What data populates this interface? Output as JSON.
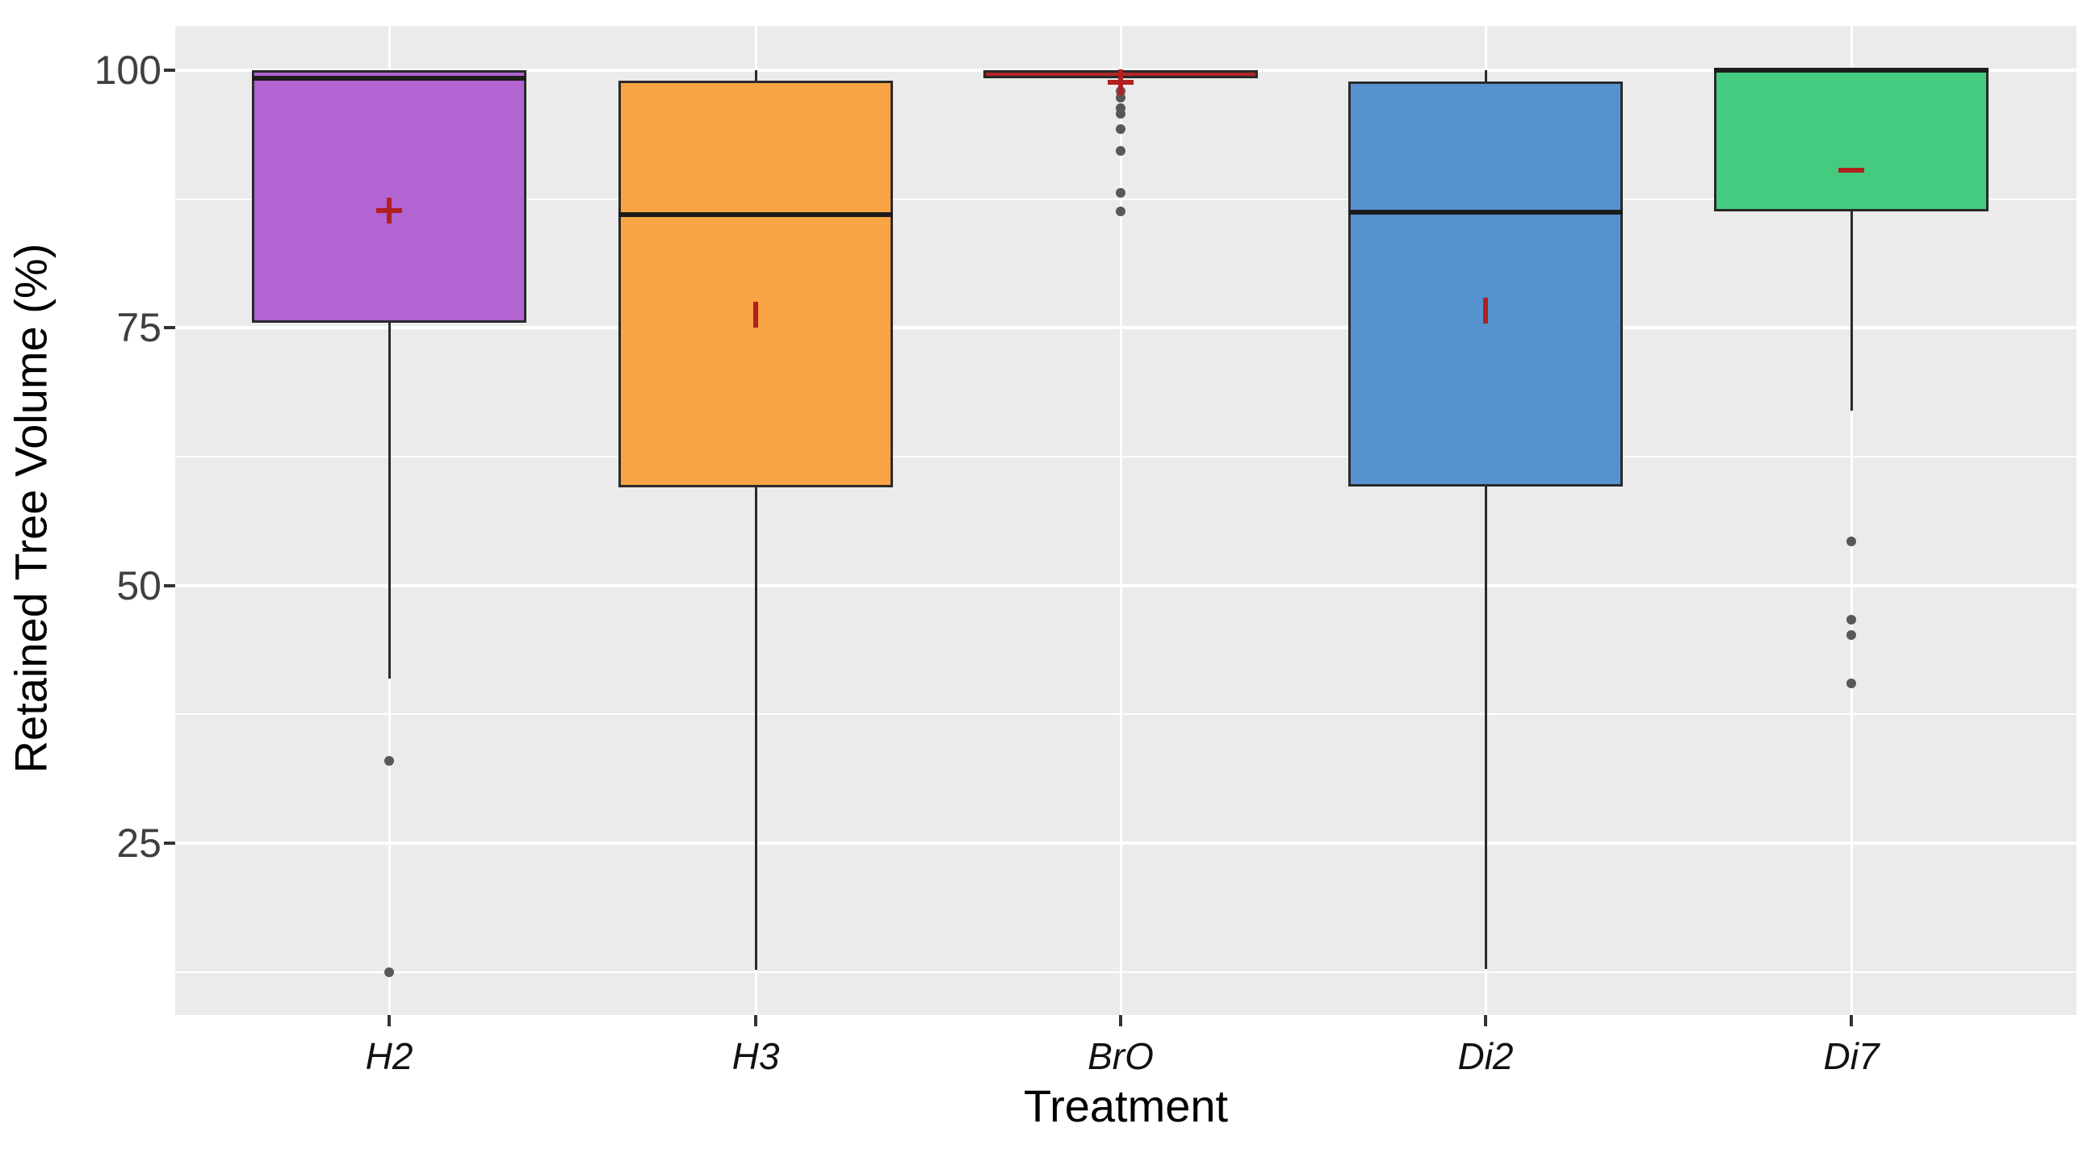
{
  "chart_data": {
    "type": "boxplot",
    "title": "",
    "xlabel": "Treatment",
    "ylabel": "Retained Tree Volume (%)",
    "categories": [
      "H2",
      "H3",
      "BrO",
      "Di2",
      "Di7"
    ],
    "y_ticks": [
      100,
      75,
      50,
      25
    ],
    "y_minor_gridlines": [
      87.5,
      62.5,
      37.5,
      12.5
    ],
    "ylim": [
      8,
      104.5
    ],
    "grid": "white major and minor horizontal lines plus white vertical line at each category center, on grey panel",
    "legend": "none",
    "series": [
      {
        "name": "H2",
        "fill_color": "#B164D2",
        "q1": 75.5,
        "median": 99.2,
        "q3": 100,
        "whisker_low": 41,
        "whisker_high": 100,
        "mean": 86.4,
        "mean_marker": "plus",
        "outliers": [
          33,
          12.5
        ]
      },
      {
        "name": "H3",
        "fill_color": "#F8A444",
        "q1": 59.5,
        "median": 86,
        "q3": 99,
        "whisker_low": 12.7,
        "whisker_high": 100,
        "mean": 76.3,
        "mean_marker": "vbar",
        "outliers": []
      },
      {
        "name": "BrO",
        "fill_color": "#B22727",
        "q1": 99.2,
        "median": 99.6,
        "q3": 100,
        "whisker_low": null,
        "whisker_high": null,
        "mean": 98.8,
        "mean_marker": "plus",
        "outliers": [
          98,
          97.3,
          96.3,
          95.8,
          94.3,
          92.2,
          88.1,
          86.3
        ]
      },
      {
        "name": "Di2",
        "fill_color": "#5592CF",
        "q1": 59.6,
        "median": 86.2,
        "q3": 98.9,
        "whisker_low": 12.8,
        "whisker_high": 100,
        "mean": 76.7,
        "mean_marker": "vbar",
        "outliers": []
      },
      {
        "name": "Di7",
        "fill_color": "#44CB80",
        "q1": 86.3,
        "median": 100,
        "q3": 100,
        "whisker_low": 67,
        "whisker_high": 100,
        "mean": 90.3,
        "mean_marker": "hbar",
        "outliers": [
          54.3,
          46.7,
          45.2,
          40.5
        ]
      }
    ]
  },
  "colors": {
    "page_bg": "#FFFFFF",
    "panel_bg": "#EBEBEB",
    "gridline": "#FFFFFF",
    "box_border": "#2A2A2A",
    "median_line": "#1C1C1C",
    "whisker": "#2A2A2A",
    "outlier_dot": "#585858",
    "mean_marker": "#B02020",
    "tick_text": "#404040",
    "axis_title_text": "#000000"
  }
}
